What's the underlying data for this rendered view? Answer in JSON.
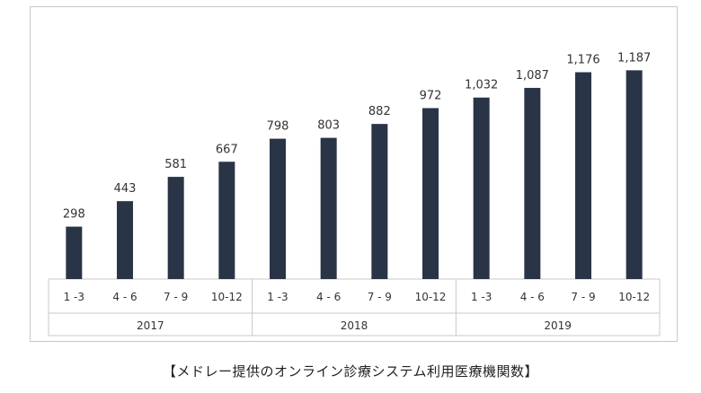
{
  "caption": "【メドレー提供のオンライン診療システム利用医療機関数】",
  "colors": {
    "bar": "#2a3447",
    "grid": "#c8c8c8",
    "text": "#333333"
  },
  "chart_data": {
    "type": "bar",
    "title": "",
    "xlabel": "",
    "ylabel": "",
    "ylim": [
      0,
      1250
    ],
    "grid": false,
    "groups": [
      {
        "label": "2017",
        "categories": [
          "1 -3",
          "4 - 6",
          "7 - 9",
          "10-12"
        ],
        "values": [
          298,
          443,
          581,
          667
        ],
        "value_labels": [
          "298",
          "443",
          "581",
          "667"
        ]
      },
      {
        "label": "2018",
        "categories": [
          "1 -3",
          "4 - 6",
          "7 - 9",
          "10-12"
        ],
        "values": [
          798,
          803,
          882,
          972
        ],
        "value_labels": [
          "798",
          "803",
          "882",
          "972"
        ]
      },
      {
        "label": "2019",
        "categories": [
          "1 -3",
          "4 - 6",
          "7 - 9",
          "10-12"
        ],
        "values": [
          1032,
          1087,
          1176,
          1187
        ],
        "value_labels": [
          "1,032",
          "1,087",
          "1,176",
          "1,187"
        ]
      }
    ]
  }
}
